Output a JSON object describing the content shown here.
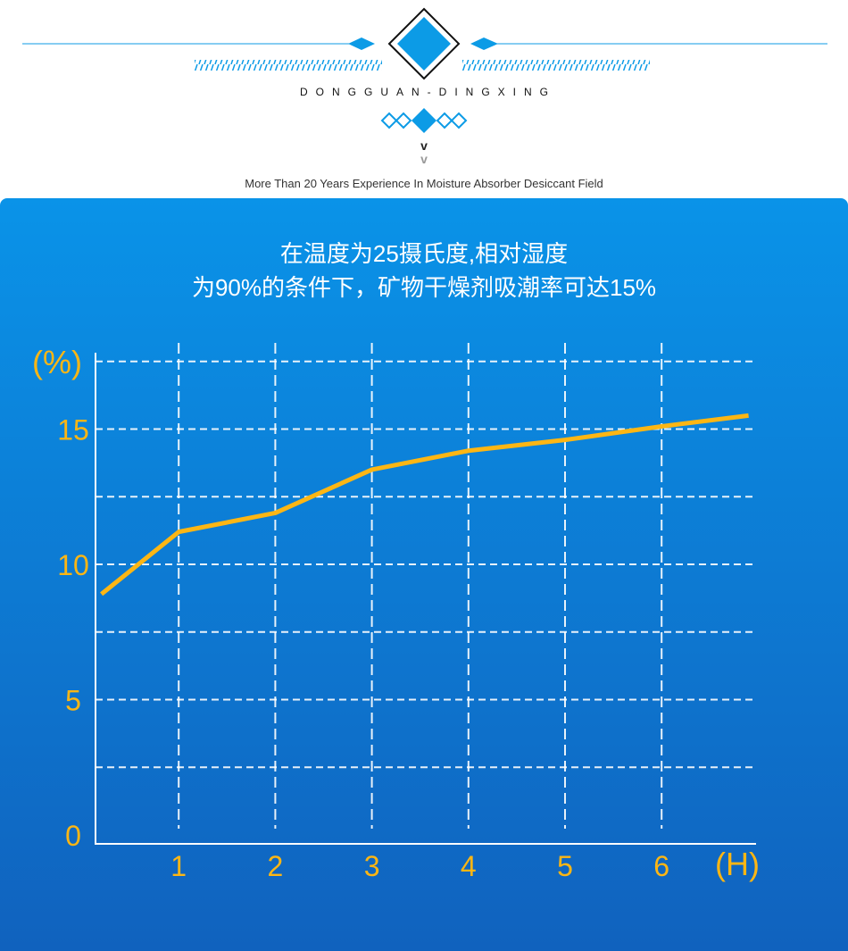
{
  "header": {
    "brand": "DONGGUAN-DINGXING",
    "tagline": "More Than 20 Years Experience In Moisture Absorber Desiccant Field",
    "chevron": "v",
    "accent": "#0C9BE6"
  },
  "panel": {
    "title_line1": "在温度为25摄氏度,相对湿度",
    "title_line2": "为90%的条件下，矿物干燥剂吸潮率可达15%"
  },
  "chart_data": {
    "type": "line",
    "ylabel": "(%)",
    "xlabel": "(H)",
    "x": [
      0.2,
      1,
      2,
      3,
      4,
      5,
      6,
      6.9
    ],
    "values": [
      8.9,
      11.2,
      11.9,
      13.5,
      14.2,
      14.6,
      15.1,
      15.5
    ],
    "xticks": [
      "1",
      "2",
      "3",
      "4",
      "5",
      "6"
    ],
    "yticks": [
      "0",
      "5",
      "10",
      "15"
    ],
    "ylim": [
      0,
      17.5
    ],
    "xlim": [
      0,
      7
    ],
    "grid": true,
    "line_color": "#FDB614",
    "label_color": "#FDB614"
  }
}
